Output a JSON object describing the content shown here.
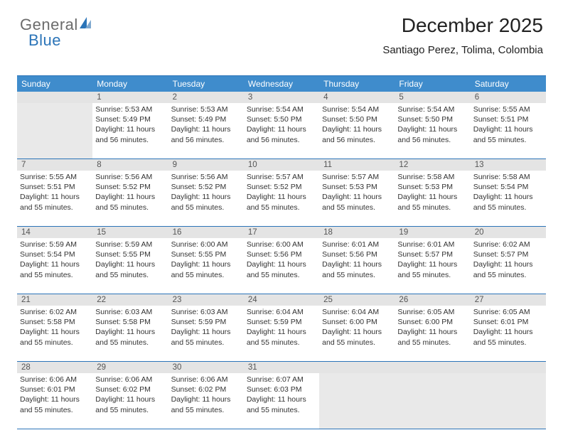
{
  "logo": {
    "part1": "General",
    "part2": "Blue"
  },
  "title": "December 2025",
  "location": "Santiago Perez, Tolima, Colombia",
  "colors": {
    "header_bg": "#3f8ccc",
    "border": "#2b74b8",
    "daynum_bg": "#e4e4e4",
    "text": "#333333",
    "logo_gray": "#6b6b6b",
    "logo_blue": "#2b74b8"
  },
  "dayHeaders": [
    "Sunday",
    "Monday",
    "Tuesday",
    "Wednesday",
    "Thursday",
    "Friday",
    "Saturday"
  ],
  "weeks": [
    [
      null,
      {
        "n": "1",
        "r": "Sunrise: 5:53 AM",
        "s": "Sunset: 5:49 PM",
        "d": "Daylight: 11 hours and 56 minutes."
      },
      {
        "n": "2",
        "r": "Sunrise: 5:53 AM",
        "s": "Sunset: 5:49 PM",
        "d": "Daylight: 11 hours and 56 minutes."
      },
      {
        "n": "3",
        "r": "Sunrise: 5:54 AM",
        "s": "Sunset: 5:50 PM",
        "d": "Daylight: 11 hours and 56 minutes."
      },
      {
        "n": "4",
        "r": "Sunrise: 5:54 AM",
        "s": "Sunset: 5:50 PM",
        "d": "Daylight: 11 hours and 56 minutes."
      },
      {
        "n": "5",
        "r": "Sunrise: 5:54 AM",
        "s": "Sunset: 5:50 PM",
        "d": "Daylight: 11 hours and 56 minutes."
      },
      {
        "n": "6",
        "r": "Sunrise: 5:55 AM",
        "s": "Sunset: 5:51 PM",
        "d": "Daylight: 11 hours and 55 minutes."
      }
    ],
    [
      {
        "n": "7",
        "r": "Sunrise: 5:55 AM",
        "s": "Sunset: 5:51 PM",
        "d": "Daylight: 11 hours and 55 minutes."
      },
      {
        "n": "8",
        "r": "Sunrise: 5:56 AM",
        "s": "Sunset: 5:52 PM",
        "d": "Daylight: 11 hours and 55 minutes."
      },
      {
        "n": "9",
        "r": "Sunrise: 5:56 AM",
        "s": "Sunset: 5:52 PM",
        "d": "Daylight: 11 hours and 55 minutes."
      },
      {
        "n": "10",
        "r": "Sunrise: 5:57 AM",
        "s": "Sunset: 5:52 PM",
        "d": "Daylight: 11 hours and 55 minutes."
      },
      {
        "n": "11",
        "r": "Sunrise: 5:57 AM",
        "s": "Sunset: 5:53 PM",
        "d": "Daylight: 11 hours and 55 minutes."
      },
      {
        "n": "12",
        "r": "Sunrise: 5:58 AM",
        "s": "Sunset: 5:53 PM",
        "d": "Daylight: 11 hours and 55 minutes."
      },
      {
        "n": "13",
        "r": "Sunrise: 5:58 AM",
        "s": "Sunset: 5:54 PM",
        "d": "Daylight: 11 hours and 55 minutes."
      }
    ],
    [
      {
        "n": "14",
        "r": "Sunrise: 5:59 AM",
        "s": "Sunset: 5:54 PM",
        "d": "Daylight: 11 hours and 55 minutes."
      },
      {
        "n": "15",
        "r": "Sunrise: 5:59 AM",
        "s": "Sunset: 5:55 PM",
        "d": "Daylight: 11 hours and 55 minutes."
      },
      {
        "n": "16",
        "r": "Sunrise: 6:00 AM",
        "s": "Sunset: 5:55 PM",
        "d": "Daylight: 11 hours and 55 minutes."
      },
      {
        "n": "17",
        "r": "Sunrise: 6:00 AM",
        "s": "Sunset: 5:56 PM",
        "d": "Daylight: 11 hours and 55 minutes."
      },
      {
        "n": "18",
        "r": "Sunrise: 6:01 AM",
        "s": "Sunset: 5:56 PM",
        "d": "Daylight: 11 hours and 55 minutes."
      },
      {
        "n": "19",
        "r": "Sunrise: 6:01 AM",
        "s": "Sunset: 5:57 PM",
        "d": "Daylight: 11 hours and 55 minutes."
      },
      {
        "n": "20",
        "r": "Sunrise: 6:02 AM",
        "s": "Sunset: 5:57 PM",
        "d": "Daylight: 11 hours and 55 minutes."
      }
    ],
    [
      {
        "n": "21",
        "r": "Sunrise: 6:02 AM",
        "s": "Sunset: 5:58 PM",
        "d": "Daylight: 11 hours and 55 minutes."
      },
      {
        "n": "22",
        "r": "Sunrise: 6:03 AM",
        "s": "Sunset: 5:58 PM",
        "d": "Daylight: 11 hours and 55 minutes."
      },
      {
        "n": "23",
        "r": "Sunrise: 6:03 AM",
        "s": "Sunset: 5:59 PM",
        "d": "Daylight: 11 hours and 55 minutes."
      },
      {
        "n": "24",
        "r": "Sunrise: 6:04 AM",
        "s": "Sunset: 5:59 PM",
        "d": "Daylight: 11 hours and 55 minutes."
      },
      {
        "n": "25",
        "r": "Sunrise: 6:04 AM",
        "s": "Sunset: 6:00 PM",
        "d": "Daylight: 11 hours and 55 minutes."
      },
      {
        "n": "26",
        "r": "Sunrise: 6:05 AM",
        "s": "Sunset: 6:00 PM",
        "d": "Daylight: 11 hours and 55 minutes."
      },
      {
        "n": "27",
        "r": "Sunrise: 6:05 AM",
        "s": "Sunset: 6:01 PM",
        "d": "Daylight: 11 hours and 55 minutes."
      }
    ],
    [
      {
        "n": "28",
        "r": "Sunrise: 6:06 AM",
        "s": "Sunset: 6:01 PM",
        "d": "Daylight: 11 hours and 55 minutes."
      },
      {
        "n": "29",
        "r": "Sunrise: 6:06 AM",
        "s": "Sunset: 6:02 PM",
        "d": "Daylight: 11 hours and 55 minutes."
      },
      {
        "n": "30",
        "r": "Sunrise: 6:06 AM",
        "s": "Sunset: 6:02 PM",
        "d": "Daylight: 11 hours and 55 minutes."
      },
      {
        "n": "31",
        "r": "Sunrise: 6:07 AM",
        "s": "Sunset: 6:03 PM",
        "d": "Daylight: 11 hours and 55 minutes."
      },
      null,
      null,
      null
    ]
  ]
}
